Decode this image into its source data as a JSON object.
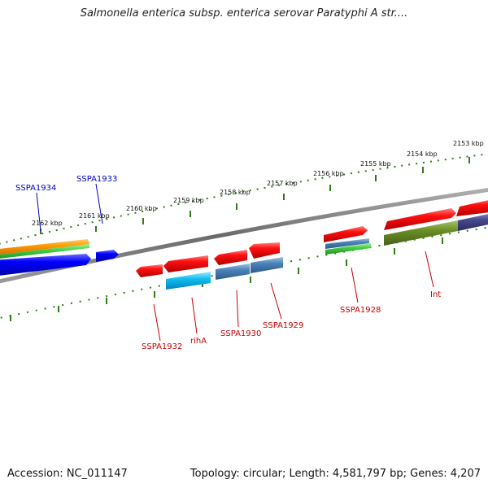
{
  "title": "Salmonella enterica subsp. enterica serovar Paratyphi A str....",
  "footer": {
    "accession": "Accession: NC_011147",
    "topology": "Topology: circular; Length: 4,581,797 bp; Genes: 4,207"
  },
  "scale_labels": [
    "2162 kbp",
    "2161 kbp",
    "2160 kbp",
    "2159 kbp",
    "2158 kbp",
    "2157 kbp",
    "2156 kbp",
    "2155 kbp",
    "2154 kbp",
    "2153 kbp"
  ],
  "genes_top": [
    "SSPA1934",
    "SSPA1933"
  ],
  "genes_bottom": [
    "SSPA1932",
    "rihA",
    "SSPA1930",
    "SSPA1929",
    "SSPA1928",
    "Int"
  ],
  "colors": {
    "top_label": "#0000cc",
    "bottom_label": "#cc0000",
    "ruler": "#2e7d16",
    "backbone": "#808080"
  }
}
